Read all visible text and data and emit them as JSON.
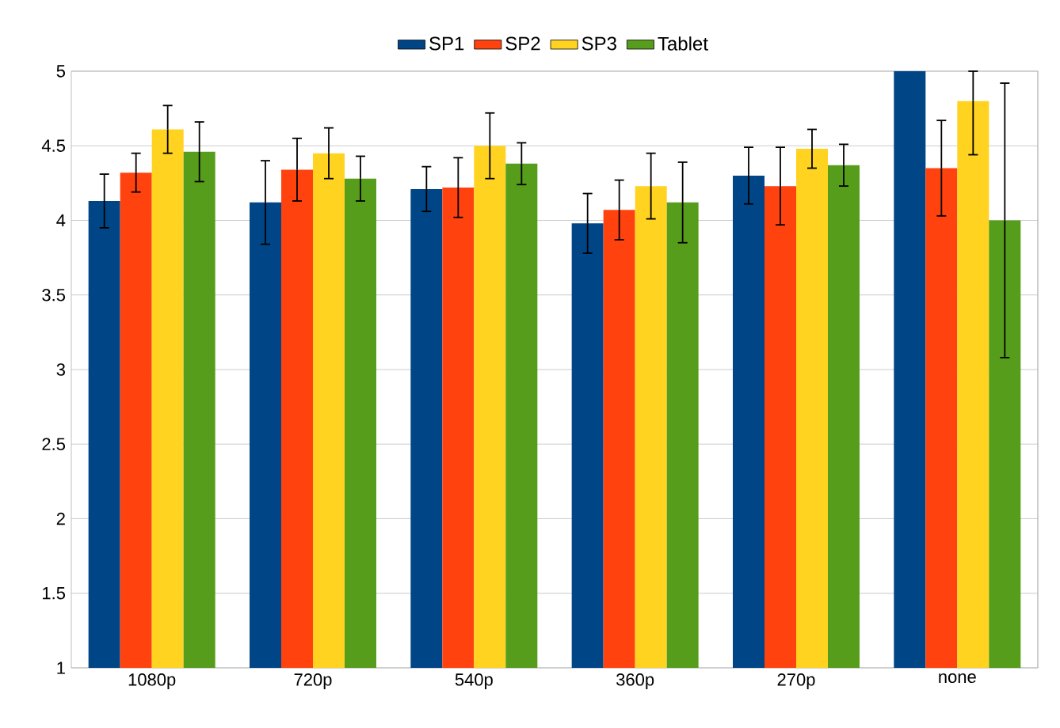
{
  "chart_data": {
    "type": "bar",
    "categories": [
      "1080p",
      "720p",
      "540p",
      "360p",
      "270p",
      "none"
    ],
    "series": [
      {
        "name": "SP1",
        "color": "#004586",
        "values": [
          4.13,
          4.12,
          4.21,
          3.98,
          4.3,
          5.0
        ],
        "errors": [
          0.18,
          0.28,
          0.15,
          0.2,
          0.19,
          null
        ]
      },
      {
        "name": "SP2",
        "color": "#ff420e",
        "values": [
          4.32,
          4.34,
          4.22,
          4.07,
          4.23,
          4.35
        ],
        "errors": [
          0.13,
          0.21,
          0.2,
          0.2,
          0.26,
          0.32
        ]
      },
      {
        "name": "SP3",
        "color": "#ffd320",
        "values": [
          4.61,
          4.45,
          4.5,
          4.23,
          4.48,
          4.8
        ],
        "errors": [
          0.16,
          0.17,
          0.22,
          0.22,
          0.13,
          [
            4.44,
            5.0
          ]
        ]
      },
      {
        "name": "Tablet",
        "color": "#579d1c",
        "values": [
          4.46,
          4.28,
          4.38,
          4.12,
          4.37,
          4.0
        ],
        "errors": [
          0.2,
          0.15,
          0.14,
          0.27,
          0.14,
          0.92
        ]
      }
    ],
    "ylim": [
      1,
      5
    ],
    "yticks": [
      1,
      1.5,
      2,
      2.5,
      3,
      3.5,
      4,
      4.5,
      5
    ],
    "grid": "y",
    "legend": "top"
  }
}
